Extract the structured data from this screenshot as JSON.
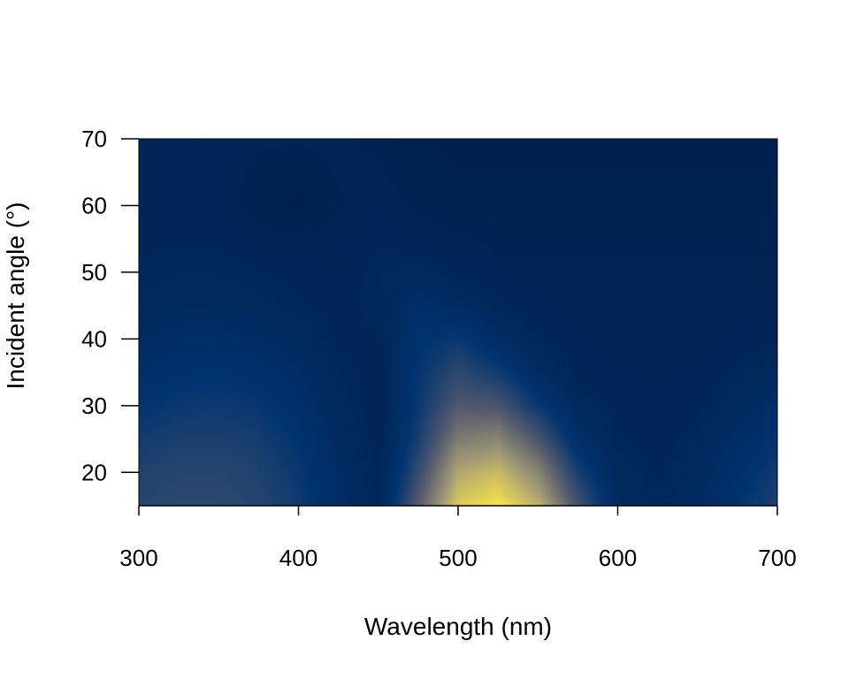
{
  "chart_data": {
    "type": "heatmap",
    "title": "",
    "xlabel": "Wavelength (nm)",
    "ylabel": "Incident angle (°)",
    "xlim": [
      300,
      700
    ],
    "ylim": [
      15,
      70
    ],
    "x_ticks": [
      300,
      400,
      500,
      600,
      700
    ],
    "y_ticks": [
      20,
      30,
      40,
      50,
      60,
      70
    ],
    "x_tick_labels": [
      "300",
      "400",
      "500",
      "600",
      "700"
    ],
    "y_tick_labels": [
      "20",
      "30",
      "40",
      "50",
      "60",
      "70"
    ],
    "colormap": [
      "#00204d",
      "#00336f",
      "#575c6d",
      "#a69d75",
      "#ffea46"
    ],
    "grid": false,
    "legend": "none",
    "x": [
      300,
      325,
      350,
      375,
      400,
      425,
      450,
      475,
      500,
      525,
      550,
      575,
      600,
      625,
      650,
      675,
      700
    ],
    "y": [
      15,
      20,
      25,
      30,
      35,
      40,
      45,
      50,
      55,
      60,
      65,
      70
    ],
    "z": [
      [
        0.36,
        0.38,
        0.38,
        0.36,
        0.3,
        0.18,
        0.1,
        0.5,
        0.9,
        0.98,
        0.82,
        0.45,
        0.16,
        0.1,
        0.15,
        0.25,
        0.33
      ],
      [
        0.34,
        0.36,
        0.36,
        0.34,
        0.28,
        0.16,
        0.08,
        0.4,
        0.78,
        0.85,
        0.66,
        0.32,
        0.12,
        0.08,
        0.13,
        0.22,
        0.3
      ],
      [
        0.3,
        0.33,
        0.33,
        0.31,
        0.25,
        0.14,
        0.07,
        0.32,
        0.62,
        0.66,
        0.46,
        0.2,
        0.09,
        0.07,
        0.1,
        0.18,
        0.24
      ],
      [
        0.25,
        0.28,
        0.29,
        0.27,
        0.21,
        0.12,
        0.06,
        0.28,
        0.48,
        0.46,
        0.28,
        0.12,
        0.07,
        0.06,
        0.08,
        0.13,
        0.18
      ],
      [
        0.2,
        0.23,
        0.24,
        0.22,
        0.17,
        0.1,
        0.07,
        0.26,
        0.38,
        0.3,
        0.16,
        0.08,
        0.06,
        0.05,
        0.06,
        0.09,
        0.12
      ],
      [
        0.15,
        0.18,
        0.18,
        0.16,
        0.13,
        0.08,
        0.08,
        0.24,
        0.28,
        0.18,
        0.09,
        0.06,
        0.05,
        0.05,
        0.05,
        0.07,
        0.08
      ],
      [
        0.11,
        0.13,
        0.13,
        0.11,
        0.09,
        0.07,
        0.1,
        0.2,
        0.16,
        0.09,
        0.06,
        0.05,
        0.05,
        0.05,
        0.05,
        0.05,
        0.06
      ],
      [
        0.09,
        0.1,
        0.1,
        0.09,
        0.07,
        0.06,
        0.1,
        0.12,
        0.08,
        0.05,
        0.05,
        0.05,
        0.05,
        0.05,
        0.05,
        0.05,
        0.05
      ],
      [
        0.08,
        0.08,
        0.08,
        0.06,
        0.05,
        0.06,
        0.08,
        0.06,
        0.05,
        0.04,
        0.04,
        0.04,
        0.04,
        0.04,
        0.04,
        0.04,
        0.04
      ],
      [
        0.08,
        0.07,
        0.06,
        0.03,
        0.01,
        0.04,
        0.06,
        0.04,
        0.03,
        0.03,
        0.03,
        0.03,
        0.03,
        0.03,
        0.03,
        0.03,
        0.03
      ],
      [
        0.08,
        0.07,
        0.06,
        0.04,
        0.03,
        0.05,
        0.05,
        0.03,
        0.02,
        0.02,
        0.02,
        0.02,
        0.02,
        0.02,
        0.02,
        0.02,
        0.02
      ],
      [
        0.07,
        0.07,
        0.06,
        0.05,
        0.05,
        0.05,
        0.04,
        0.02,
        0.01,
        0.01,
        0.01,
        0.01,
        0.01,
        0.01,
        0.01,
        0.01,
        0.01
      ]
    ]
  }
}
